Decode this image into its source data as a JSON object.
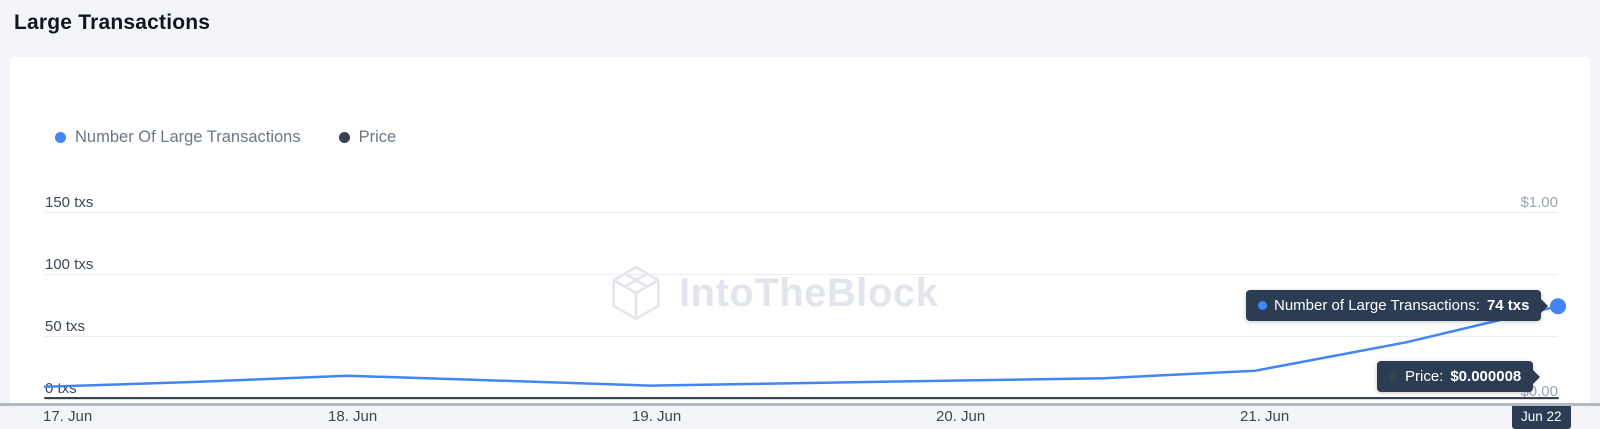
{
  "header": {
    "title": "Large Transactions"
  },
  "legend": {
    "items": [
      {
        "label": "Number Of Large Transactions",
        "color": "#4285f4"
      },
      {
        "label": "Price",
        "color": "#39434f"
      }
    ]
  },
  "watermark": {
    "text": "IntoTheBlock"
  },
  "chart_data": {
    "type": "line",
    "x": [
      "Jun 17",
      "Jun 17.5",
      "Jun 18",
      "Jun 18.5",
      "Jun 19",
      "Jun 19.5",
      "Jun 20",
      "Jun 20.5",
      "Jun 21",
      "Jun 21.5",
      "Jun 22"
    ],
    "series": [
      {
        "name": "Number Of Large Transactions",
        "axis": "left",
        "unit": "txs",
        "color": "#4285f4",
        "values": [
          9,
          13,
          18,
          14,
          10,
          12,
          14,
          16,
          22,
          45,
          74
        ]
      },
      {
        "name": "Price",
        "axis": "right",
        "unit": "USD",
        "color": "#39434f",
        "values": [
          8e-06,
          8e-06,
          8e-06,
          8e-06,
          8e-06,
          8e-06,
          8e-06,
          8e-06,
          8e-06,
          8e-06,
          8e-06
        ]
      }
    ],
    "left_axis": {
      "ticks": [
        "150 txs",
        "100 txs",
        "50 txs",
        "0 txs"
      ],
      "range": [
        0,
        150
      ]
    },
    "right_axis": {
      "ticks": [
        "$1.00",
        "$0.00"
      ],
      "range": [
        0,
        1
      ]
    },
    "x_ticks": [
      "17. Jun",
      "18. Jun",
      "19. Jun",
      "20. Jun",
      "21. Jun"
    ],
    "grid": true,
    "legend_position": "top-left",
    "highlight": {
      "x": "Jun 22",
      "transactions_txs": 74,
      "price_usd": 8e-06
    }
  },
  "tooltips": {
    "transactions": {
      "label": "Number of Large Transactions:",
      "value": "74 txs"
    },
    "price": {
      "label": "Price:",
      "value": "$0.000008"
    },
    "crosshair_date": "Jun 22"
  }
}
